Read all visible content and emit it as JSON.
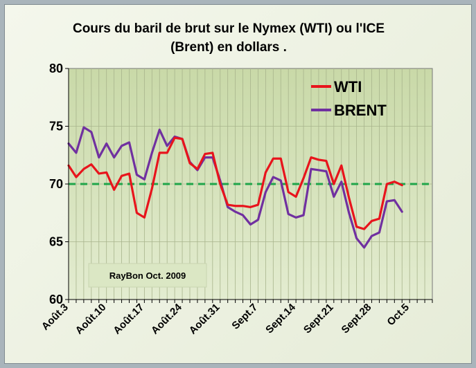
{
  "chart_data": {
    "type": "line",
    "title_line1": "Cours du baril de brut sur le Nymex (WTI) ou l'ICE",
    "title_line2": "(Brent) en dollars .",
    "ylim": [
      60,
      80
    ],
    "yticks": [
      60,
      65,
      70,
      75,
      80
    ],
    "xlim": [
      0,
      48
    ],
    "x_ticks": [
      {
        "label": "Août.3",
        "x": 0
      },
      {
        "label": "Août.10",
        "x": 5
      },
      {
        "label": "Août.17",
        "x": 10
      },
      {
        "label": "Août.24",
        "x": 15
      },
      {
        "label": "Août.31",
        "x": 20
      },
      {
        "label": "Sept.7",
        "x": 25
      },
      {
        "label": "Sept.14",
        "x": 30
      },
      {
        "label": "Sept.21",
        "x": 35
      },
      {
        "label": "Sept.28",
        "x": 40
      },
      {
        "label": "Oct.5",
        "x": 45
      }
    ],
    "reference_line": {
      "y": 70,
      "color": "#1fa64a"
    },
    "series": [
      {
        "name": "WTI",
        "color": "#e8141c",
        "values": [
          71.6,
          70.6,
          71.3,
          71.7,
          70.9,
          71.0,
          69.5,
          70.7,
          70.9,
          67.5,
          67.1,
          69.6,
          72.7,
          72.7,
          74.0,
          73.9,
          71.8,
          71.3,
          72.6,
          72.7,
          70.0,
          68.2,
          68.1,
          68.1,
          68.0,
          68.2,
          71.0,
          72.2,
          72.2,
          69.3,
          68.9,
          70.5,
          72.3,
          72.1,
          72.0,
          70.0,
          71.6,
          68.8,
          66.3,
          66.1,
          66.8,
          67.0,
          70.0,
          70.2,
          69.9
        ]
      },
      {
        "name": "BRENT",
        "color": "#7030a0",
        "values": [
          73.5,
          72.7,
          74.9,
          74.5,
          72.3,
          73.5,
          72.3,
          73.3,
          73.6,
          70.8,
          70.4,
          72.7,
          74.7,
          73.3,
          74.1,
          73.9,
          71.9,
          71.2,
          72.3,
          72.3,
          70.3,
          68.0,
          67.6,
          67.3,
          66.5,
          66.9,
          69.3,
          70.6,
          70.3,
          67.4,
          67.1,
          67.3,
          71.3,
          71.2,
          71.1,
          68.9,
          70.2,
          67.5,
          65.3,
          64.5,
          65.5,
          65.8,
          68.5,
          68.6,
          67.6
        ]
      }
    ],
    "legend_position": "top-right",
    "grid": true
  },
  "annotation": {
    "credit": "RayBon Oct. 2009"
  }
}
